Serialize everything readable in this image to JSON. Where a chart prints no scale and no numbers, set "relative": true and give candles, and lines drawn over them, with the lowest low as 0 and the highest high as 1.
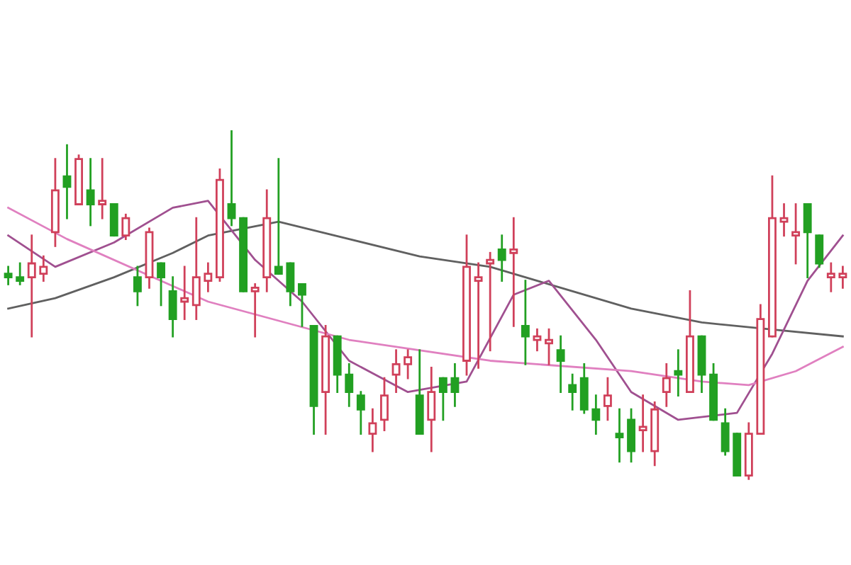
{
  "chart_data": {
    "type": "candlestick",
    "relative": true,
    "categories": [
      null,
      null,
      null,
      null,
      null,
      null,
      null,
      null,
      null,
      null,
      null,
      null,
      null,
      null,
      null,
      null,
      null,
      null,
      null,
      null,
      null,
      null,
      null,
      null,
      null,
      null,
      null,
      null,
      null,
      null,
      null,
      null,
      null,
      null,
      null,
      null,
      null,
      null,
      null,
      null,
      null,
      null,
      null,
      null,
      null,
      null,
      null,
      null,
      null,
      null,
      null,
      null,
      null,
      null,
      null,
      null,
      null,
      null,
      null,
      null,
      null,
      null,
      null,
      null,
      null,
      null,
      null,
      null,
      null,
      null,
      null,
      null
    ],
    "ohlc": [
      [
        0.59,
        0.61,
        0.56,
        0.58
      ],
      [
        0.58,
        0.62,
        0.56,
        0.57
      ],
      [
        0.58,
        0.7,
        0.41,
        0.62
      ],
      [
        0.59,
        0.64,
        0.57,
        0.61
      ],
      [
        0.71,
        0.92,
        0.67,
        0.83
      ],
      [
        0.87,
        0.96,
        0.75,
        0.84
      ],
      [
        0.79,
        0.93,
        0.79,
        0.92
      ],
      [
        0.83,
        0.92,
        0.73,
        0.79
      ],
      [
        0.79,
        0.92,
        0.75,
        0.8
      ],
      [
        0.79,
        0.79,
        0.7,
        0.7
      ],
      [
        0.7,
        0.76,
        0.69,
        0.75
      ],
      [
        0.58,
        0.61,
        0.5,
        0.54
      ],
      [
        0.58,
        0.72,
        0.55,
        0.71
      ],
      [
        0.62,
        0.62,
        0.5,
        0.58
      ],
      [
        0.54,
        0.58,
        0.41,
        0.46
      ],
      [
        0.51,
        0.61,
        0.46,
        0.52
      ],
      [
        0.5,
        0.75,
        0.46,
        0.58
      ],
      [
        0.57,
        0.62,
        0.54,
        0.59
      ],
      [
        0.58,
        0.89,
        0.57,
        0.86
      ],
      [
        0.79,
        1.0,
        0.73,
        0.75
      ],
      [
        0.75,
        0.75,
        0.54,
        0.54
      ],
      [
        0.54,
        0.56,
        0.41,
        0.55
      ],
      [
        0.58,
        0.83,
        0.54,
        0.75
      ],
      [
        0.61,
        0.92,
        0.59,
        0.59
      ],
      [
        0.62,
        0.62,
        0.5,
        0.54
      ],
      [
        0.56,
        0.56,
        0.44,
        0.53
      ],
      [
        0.44,
        0.44,
        0.13,
        0.21
      ],
      [
        0.25,
        0.44,
        0.13,
        0.41
      ],
      [
        0.41,
        0.41,
        0.25,
        0.3
      ],
      [
        0.3,
        0.33,
        0.21,
        0.25
      ],
      [
        0.24,
        0.25,
        0.13,
        0.2
      ],
      [
        0.13,
        0.2,
        0.08,
        0.16
      ],
      [
        0.17,
        0.29,
        0.14,
        0.24
      ],
      [
        0.3,
        0.37,
        0.25,
        0.33
      ],
      [
        0.33,
        0.37,
        0.29,
        0.35
      ],
      [
        0.24,
        0.37,
        0.13,
        0.13
      ],
      [
        0.17,
        0.32,
        0.08,
        0.25
      ],
      [
        0.29,
        0.29,
        0.17,
        0.25
      ],
      [
        0.29,
        0.33,
        0.21,
        0.25
      ],
      [
        0.34,
        0.7,
        0.3,
        0.61
      ],
      [
        0.57,
        0.62,
        0.32,
        0.58
      ],
      [
        0.62,
        0.65,
        0.37,
        0.63
      ],
      [
        0.66,
        0.7,
        0.57,
        0.63
      ],
      [
        0.65,
        0.75,
        0.44,
        0.66
      ],
      [
        0.44,
        0.57,
        0.33,
        0.41
      ],
      [
        0.4,
        0.43,
        0.37,
        0.41
      ],
      [
        0.39,
        0.43,
        0.33,
        0.4
      ],
      [
        0.37,
        0.41,
        0.25,
        0.34
      ],
      [
        0.27,
        0.3,
        0.2,
        0.25
      ],
      [
        0.29,
        0.33,
        0.19,
        0.2
      ],
      [
        0.2,
        0.24,
        0.13,
        0.17
      ],
      [
        0.21,
        0.29,
        0.17,
        0.24
      ],
      [
        0.13,
        0.2,
        0.05,
        0.12
      ],
      [
        0.17,
        0.2,
        0.05,
        0.08
      ],
      [
        0.14,
        0.24,
        0.08,
        0.15
      ],
      [
        0.08,
        0.22,
        0.04,
        0.2
      ],
      [
        0.25,
        0.33,
        0.21,
        0.29
      ],
      [
        0.31,
        0.37,
        0.24,
        0.3
      ],
      [
        0.25,
        0.54,
        0.25,
        0.41
      ],
      [
        0.41,
        0.41,
        0.25,
        0.3
      ],
      [
        0.3,
        0.33,
        0.17,
        0.17
      ],
      [
        0.16,
        0.2,
        0.07,
        0.08
      ],
      [
        0.13,
        0.13,
        0.01,
        0.01
      ],
      [
        0.01,
        0.16,
        0.0,
        0.13
      ],
      [
        0.13,
        0.5,
        0.13,
        0.46
      ],
      [
        0.41,
        0.87,
        0.41,
        0.75
      ],
      [
        0.74,
        0.79,
        0.7,
        0.75
      ],
      [
        0.7,
        0.79,
        0.62,
        0.71
      ],
      [
        0.79,
        0.79,
        0.58,
        0.71
      ],
      [
        0.7,
        0.7,
        0.61,
        0.62
      ],
      [
        0.58,
        0.62,
        0.54,
        0.59
      ],
      [
        0.58,
        0.61,
        0.55,
        0.59
      ]
    ],
    "colors": [
      "#22a022",
      "#22a022",
      "#d0405a",
      "#d0405a",
      "#d0405a",
      "#22a022",
      "#d0405a",
      "#22a022",
      "#d0405a",
      "#22a022",
      "#d0405a",
      "#22a022",
      "#d0405a",
      "#22a022",
      "#22a022",
      "#d0405a",
      "#d0405a",
      "#d0405a",
      "#d0405a",
      "#22a022",
      "#22a022",
      "#d0405a",
      "#d0405a",
      "#22a022",
      "#22a022",
      "#22a022",
      "#22a022",
      "#d0405a",
      "#22a022",
      "#22a022",
      "#22a022",
      "#d0405a",
      "#d0405a",
      "#d0405a",
      "#d0405a",
      "#22a022",
      "#d0405a",
      "#22a022",
      "#22a022",
      "#d0405a",
      "#d0405a",
      "#d0405a",
      "#22a022",
      "#d0405a",
      "#22a022",
      "#d0405a",
      "#d0405a",
      "#22a022",
      "#22a022",
      "#22a022",
      "#22a022",
      "#d0405a",
      "#22a022",
      "#22a022",
      "#d0405a",
      "#d0405a",
      "#d0405a",
      "#22a022",
      "#d0405a",
      "#22a022",
      "#22a022",
      "#22a022",
      "#22a022",
      "#d0405a",
      "#d0405a",
      "#d0405a",
      "#d0405a",
      "#d0405a",
      "#22a022",
      "#22a022",
      "#d0405a",
      "#d0405a"
    ],
    "series": [
      {
        "type": "line",
        "color": "#606060",
        "values": [
          0.49,
          null,
          null,
          null,
          0.52,
          null,
          null,
          null,
          null,
          0.58,
          null,
          null,
          null,
          null,
          0.65,
          null,
          null,
          0.7,
          null,
          null,
          null,
          null,
          null,
          0.74,
          null,
          null,
          null,
          null,
          null,
          0.69,
          null,
          null,
          null,
          null,
          null,
          0.64,
          null,
          null,
          null,
          null,
          null,
          0.61,
          null,
          null,
          null,
          null,
          null,
          0.55,
          null,
          null,
          null,
          null,
          null,
          0.49,
          null,
          null,
          null,
          null,
          null,
          0.45,
          null,
          null,
          null,
          null,
          null,
          0.43,
          null,
          null,
          null,
          null,
          null,
          0.41
        ]
      },
      {
        "type": "line",
        "color": "#a05090",
        "values": [
          0.7,
          null,
          null,
          null,
          0.61,
          null,
          null,
          null,
          null,
          0.68,
          null,
          null,
          null,
          null,
          0.78,
          null,
          null,
          0.8,
          null,
          null,
          null,
          0.63,
          null,
          null,
          null,
          0.51,
          null,
          null,
          null,
          0.34,
          null,
          null,
          null,
          null,
          0.25,
          null,
          null,
          null,
          null,
          0.28,
          null,
          null,
          null,
          0.53,
          null,
          null,
          0.57,
          null,
          null,
          null,
          0.4,
          null,
          null,
          0.25,
          null,
          null,
          null,
          0.17,
          null,
          null,
          null,
          null,
          0.19,
          null,
          null,
          0.36,
          null,
          null,
          0.57,
          null,
          null,
          0.7
        ]
      },
      {
        "type": "line",
        "color": "#e080c0",
        "values": [
          0.78,
          null,
          null,
          null,
          null,
          0.69,
          null,
          null,
          null,
          null,
          null,
          null,
          null,
          null,
          null,
          null,
          null,
          0.51,
          null,
          null,
          null,
          null,
          null,
          null,
          null,
          null,
          null,
          null,
          null,
          0.4,
          null,
          null,
          null,
          null,
          null,
          null,
          null,
          null,
          null,
          null,
          null,
          0.34,
          null,
          null,
          null,
          null,
          null,
          null,
          null,
          null,
          null,
          null,
          null,
          0.31,
          null,
          null,
          null,
          null,
          null,
          0.28,
          null,
          null,
          null,
          0.27,
          null,
          null,
          null,
          0.31,
          null,
          null,
          null,
          0.38
        ]
      }
    ]
  }
}
